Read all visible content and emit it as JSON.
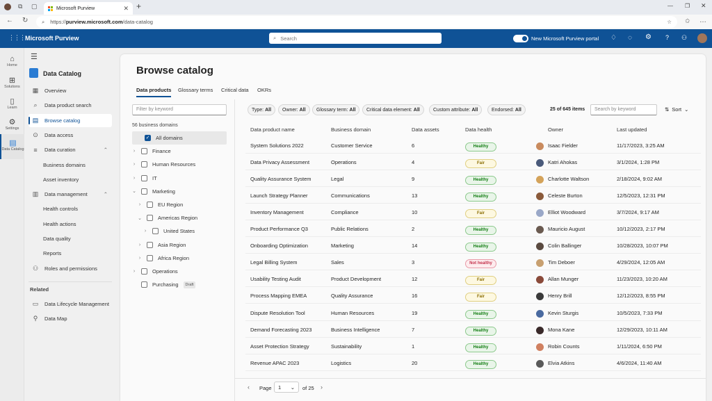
{
  "browser": {
    "tab_title": "Microsoft Purview",
    "url_prefix": "https://",
    "url_host": "purview.microsoft.com",
    "url_path": "/data-catalog"
  },
  "app": {
    "title": "Microsoft Purview",
    "search_placeholder": "Search",
    "portal_toggle_label": "New Microsoft Purview portal",
    "portal_toggle_on": true,
    "brand_color": "#0f5296"
  },
  "rail": [
    {
      "label": "Home",
      "icon": "home-icon"
    },
    {
      "label": "Solutions",
      "icon": "solutions-icon"
    },
    {
      "label": "Learn",
      "icon": "book-icon"
    },
    {
      "label": "Settings",
      "icon": "gear-icon"
    },
    {
      "label": "Data Catalog",
      "icon": "data-catalog-icon"
    }
  ],
  "nav": {
    "title": "Data Catalog",
    "items": [
      {
        "label": "Overview",
        "icon": "overview-icon"
      },
      {
        "label": "Data product search",
        "icon": "search-icon"
      },
      {
        "label": "Browse catalog",
        "icon": "browse-icon",
        "active": true
      },
      {
        "label": "Data access",
        "icon": "access-icon"
      },
      {
        "label": "Data curation",
        "icon": "curation-icon",
        "expanded": true
      },
      {
        "label": "Business domains",
        "sub": true
      },
      {
        "label": "Asset inventory",
        "sub": true
      },
      {
        "label": "Data management",
        "icon": "management-icon",
        "expanded": true
      },
      {
        "label": "Health controls",
        "sub": true
      },
      {
        "label": "Health actions",
        "sub": true
      },
      {
        "label": "Data quality",
        "sub": true
      },
      {
        "label": "Reports",
        "sub": true
      },
      {
        "label": "Roles and permissions",
        "icon": "people-icon"
      }
    ],
    "related_label": "Related",
    "related": [
      {
        "label": "Data Lifecycle Management",
        "icon": "archive-icon"
      },
      {
        "label": "Data Map",
        "icon": "map-icon"
      }
    ]
  },
  "page": {
    "title": "Browse catalog",
    "tabs": [
      "Data products",
      "Glossary terms",
      "Critical data",
      "OKRs"
    ],
    "active_tab": "Data products"
  },
  "filter": {
    "placeholder": "Filter by keyword",
    "count_label": "56 business domains",
    "tree": [
      {
        "label": "All domains",
        "level": 0,
        "checked": true,
        "chevron": ""
      },
      {
        "label": "Finance",
        "level": 0,
        "chevron": "›"
      },
      {
        "label": "Human Resources",
        "level": 0,
        "chevron": "›"
      },
      {
        "label": "IT",
        "level": 0,
        "chevron": "›"
      },
      {
        "label": "Marketing",
        "level": 0,
        "chevron": "⌄"
      },
      {
        "label": "EU Region",
        "level": 1,
        "chevron": "›"
      },
      {
        "label": "Americas Region",
        "level": 1,
        "chevron": "⌄"
      },
      {
        "label": "United States",
        "level": 2,
        "chevron": "›"
      },
      {
        "label": "Asia Region",
        "level": 1,
        "chevron": "›"
      },
      {
        "label": "Africa Region",
        "level": 1,
        "chevron": "›"
      },
      {
        "label": "Operations",
        "level": 0,
        "chevron": "›"
      },
      {
        "label": "Purchasing",
        "level": 0,
        "chevron": "",
        "badge": "Draft"
      }
    ]
  },
  "chips": [
    {
      "label": "Type:",
      "value": "All"
    },
    {
      "label": "Owner:",
      "value": "All"
    },
    {
      "label": "Glossary term:",
      "value": "All"
    },
    {
      "label": "Critical data element:",
      "value": "All"
    },
    {
      "label": "Custom attribute:",
      "value": "All"
    },
    {
      "label": "Endorsed:",
      "value": "All"
    }
  ],
  "results": {
    "count": "25 of 645 items",
    "search_placeholder": "Search by keyword",
    "sort_label": "Sort"
  },
  "table": {
    "columns": [
      "Data product name",
      "Business domain",
      "Data assets",
      "Data health",
      "Owner",
      "Last updated"
    ],
    "health_colors": {
      "Healthy": "#107c10",
      "Fair": "#8a6d00",
      "Not healthy": "#c4314b"
    },
    "rows": [
      [
        "System Solutions 2022",
        "Customer Service",
        "6",
        "Healthy",
        "Isaac Fielder",
        "11/17/2023, 3:25 AM"
      ],
      [
        "Data Privacy Assessment",
        "Operations",
        "4",
        "Fair",
        "Katri Ahokas",
        "3/1/2024, 1:28 PM"
      ],
      [
        "Quality Assurance System",
        "Legal",
        "9",
        "Healthy",
        "Charlotte Waltson",
        "2/18/2024, 9:02 AM"
      ],
      [
        "Launch Strategy Planner",
        "Communications",
        "13",
        "Healthy",
        "Celeste Burton",
        "12/5/2023, 12:31 PM"
      ],
      [
        "Inventory Management",
        "Compliance",
        "10",
        "Fair",
        "Elliot Woodward",
        "3/7/2024, 9:17 AM"
      ],
      [
        "Product Performance Q3",
        "Public Relations",
        "2",
        "Healthy",
        "Mauricio August",
        "10/12/2023, 2:17 PM"
      ],
      [
        "Onboarding Optimization",
        "Marketing",
        "14",
        "Healthy",
        "Colin Ballinger",
        "10/28/2023, 10:07 PM"
      ],
      [
        "Legal Billing System",
        "Sales",
        "3",
        "Not healthy",
        "Tim Deboer",
        "4/29/2024, 12:05 AM"
      ],
      [
        "Usability Testing Audit",
        "Product Development",
        "12",
        "Fair",
        "Allan Munger",
        "11/23/2023, 10:20 AM"
      ],
      [
        "Process Mapping EMEA",
        "Quality Assurance",
        "16",
        "Fair",
        "Henry Brill",
        "12/12/2023, 8:55 PM"
      ],
      [
        "Dispute Resolution Tool",
        "Human Resources",
        "19",
        "Healthy",
        "Kevin Sturgis",
        "10/5/2023, 7:33 PM"
      ],
      [
        "Demand Forecasting 2023",
        "Business Intelligence",
        "7",
        "Healthy",
        "Mona Kane",
        "12/29/2023, 10:11 AM"
      ],
      [
        "Asset Protection Strategy",
        "Sustainability",
        "1",
        "Healthy",
        "Robin Counts",
        "1/11/2024, 6:50 PM"
      ],
      [
        "Revenue APAC 2023",
        "Logistics",
        "20",
        "Healthy",
        "Elvia Atkins",
        "4/6/2024, 11:40 AM"
      ]
    ]
  },
  "pagination": {
    "page_label": "Page",
    "current": "1",
    "of_label": "of 25"
  }
}
